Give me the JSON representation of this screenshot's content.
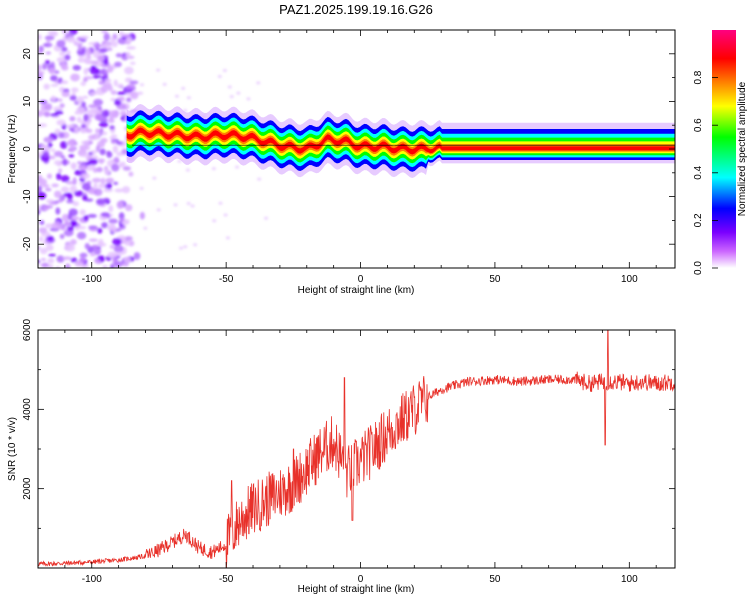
{
  "title": "PAZ1.2025.199.19.16.G26",
  "chart_data": [
    {
      "type": "heatmap",
      "xlabel": "Height of straight line (km)",
      "ylabel": "Frequency (Hz)",
      "xlim": [
        -120,
        117
      ],
      "ylim": [
        -25,
        25
      ],
      "xticks": [
        -100,
        -50,
        0,
        50,
        100
      ],
      "yticks": [
        -20,
        -10,
        0,
        10,
        20
      ],
      "colorbar": {
        "label": "Normalized spectral amplitude",
        "range": [
          0,
          1
        ],
        "ticks": [
          "0.0",
          "0.2",
          "0.4",
          "0.6",
          "0.8"
        ],
        "colors": [
          "#ffffff",
          "#cc66ff",
          "#7a00ff",
          "#0000ff",
          "#00ffff",
          "#00ff00",
          "#ffff00",
          "#ff8000",
          "#ff0000",
          "#ff0080"
        ]
      },
      "ridge_frequency": {
        "x": [
          -87,
          -80,
          -70,
          -60,
          -50,
          -42,
          -35,
          -28,
          -20,
          -12,
          -5,
          0,
          8,
          15,
          25,
          40,
          60,
          80,
          100,
          117
        ],
        "y": [
          3,
          3.5,
          3,
          2.5,
          3,
          2.5,
          1.5,
          0.5,
          0,
          2,
          1.5,
          0.5,
          0.5,
          0,
          0,
          0,
          0,
          0,
          0,
          0
        ]
      },
      "noise_region_x": [
        -120,
        -85
      ]
    },
    {
      "type": "line",
      "xlabel": "Height of straight line (km)",
      "ylabel": "SNR (10 * v/v)",
      "xlim": [
        -120,
        117
      ],
      "ylim": [
        0,
        6000
      ],
      "xticks": [
        -100,
        -50,
        0,
        50,
        100
      ],
      "yticks": [
        2000,
        4000,
        6000
      ],
      "color": "#e8312a",
      "series": [
        {
          "x": [
            -120,
            -110,
            -100,
            -90,
            -80,
            -75,
            -70,
            -65,
            -60,
            -55,
            -50,
            -45,
            -40,
            -35,
            -30,
            -25,
            -20,
            -15,
            -10,
            -5,
            0,
            5,
            10,
            15,
            20,
            25,
            30,
            35,
            40,
            50,
            60,
            70,
            80,
            85,
            90,
            95,
            100,
            105,
            110,
            117
          ],
          "y": [
            100,
            120,
            150,
            200,
            300,
            450,
            650,
            850,
            500,
            400,
            600,
            1200,
            1500,
            1700,
            1900,
            2100,
            2500,
            2900,
            3200,
            2400,
            2700,
            3000,
            3400,
            3700,
            4000,
            4300,
            4500,
            4600,
            4700,
            4750,
            4700,
            4750,
            4750,
            4650,
            4700,
            4700,
            4650,
            4700,
            4650,
            4700
          ]
        }
      ],
      "spikes": [
        {
          "x": -48,
          "y": 2200
        },
        {
          "x": -25,
          "y": 3000
        },
        {
          "x": -6,
          "y": 4800
        },
        {
          "x": -3,
          "y": 1200
        },
        {
          "x": 92,
          "y": 6000
        },
        {
          "x": 91,
          "y": 3100
        }
      ]
    }
  ]
}
